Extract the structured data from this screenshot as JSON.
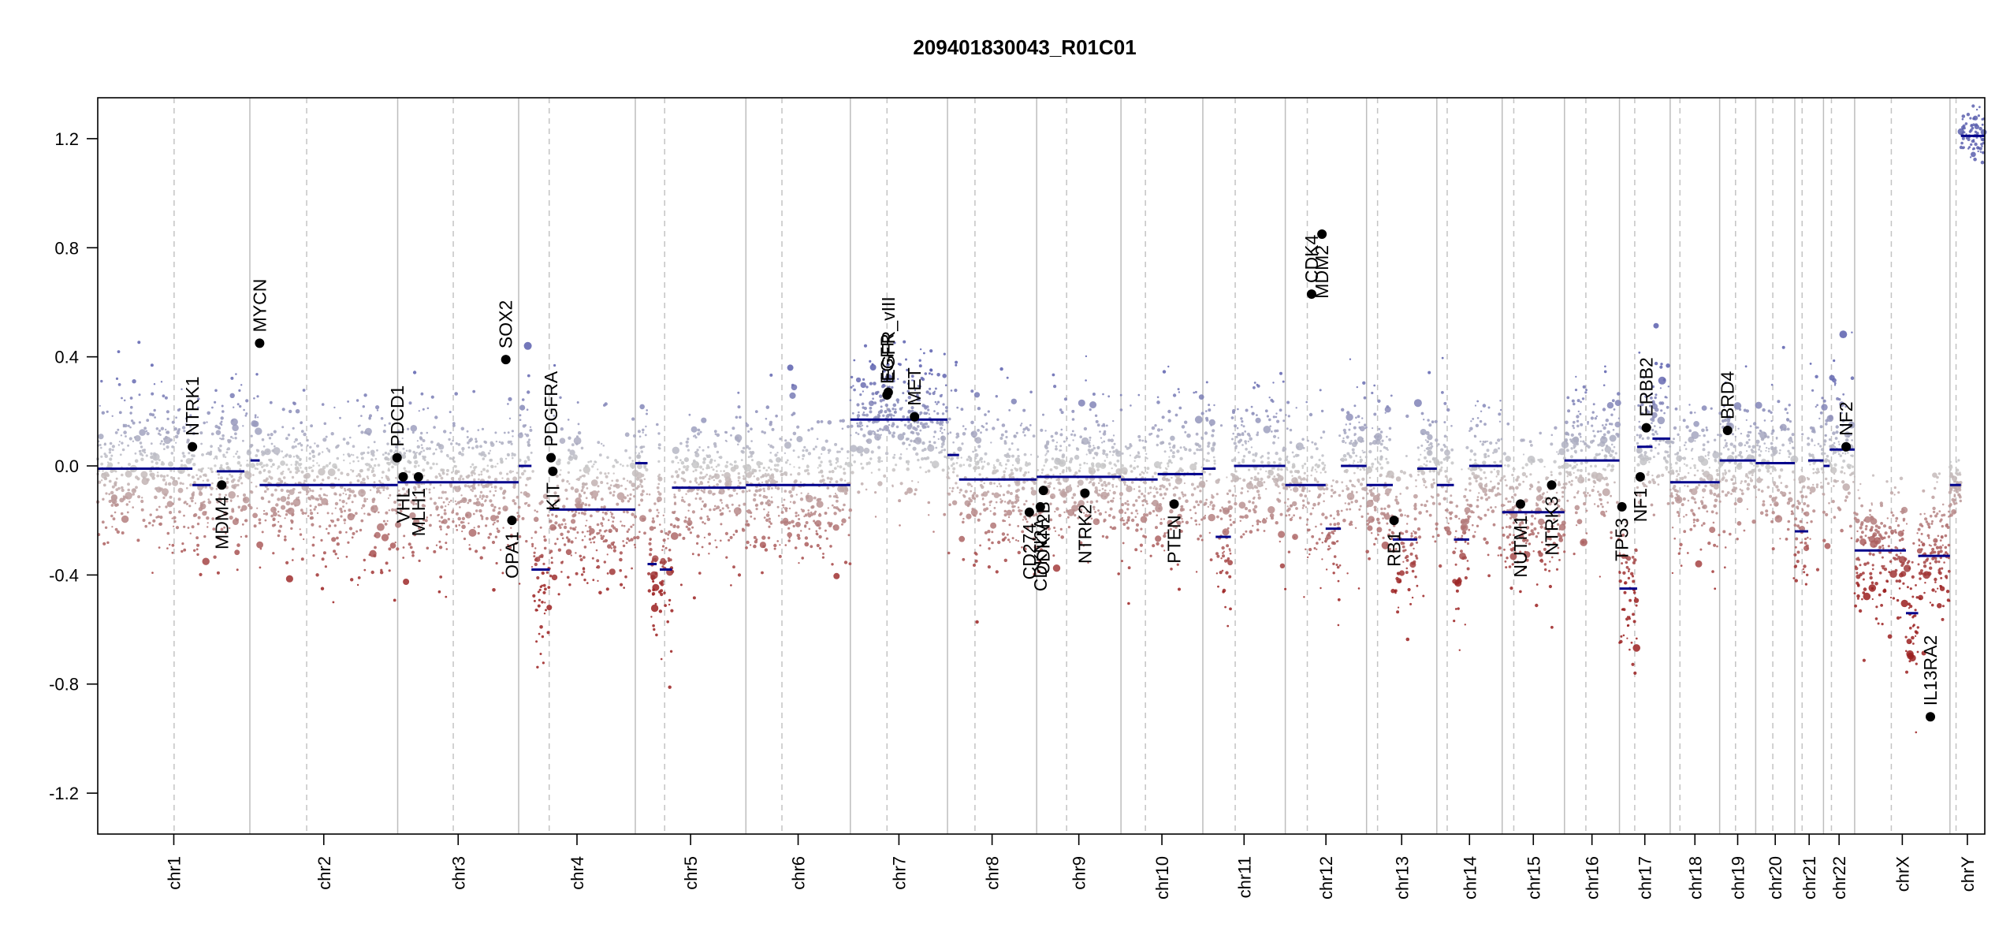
{
  "chart_data": {
    "type": "scatter",
    "title": "209401830043_R01C01",
    "xlabel": "",
    "ylabel": "",
    "ylim": [
      -1.35,
      1.35
    ],
    "yticks": [
      {
        "value": 1.2,
        "label": "1.2"
      },
      {
        "value": 0.8,
        "label": "0.8"
      },
      {
        "value": 0.4,
        "label": "0.4"
      },
      {
        "value": 0.0,
        "label": "0.0"
      },
      {
        "value": -0.4,
        "label": "-0.4"
      },
      {
        "value": -0.8,
        "label": "-0.8"
      },
      {
        "value": -1.2,
        "label": "-1.2"
      }
    ],
    "grid": "vertical lines at chromosome boundaries (solid) and centromeres (dashed)",
    "chromosomes": [
      {
        "name": "chr1",
        "label": "chr1",
        "start": 0.0,
        "end": 2.49,
        "centromere": 1.25,
        "baseline": 0.0,
        "mean": -0.01,
        "spread": 0.14
      },
      {
        "name": "chr2",
        "label": "chr2",
        "start": 2.49,
        "end": 4.91,
        "centromere": 3.42,
        "baseline": -0.02,
        "mean": -0.07,
        "spread": 0.14
      },
      {
        "name": "chr3",
        "label": "chr3",
        "start": 4.91,
        "end": 6.89,
        "centromere": 5.82,
        "baseline": 0.0,
        "mean": -0.06,
        "spread": 0.14
      },
      {
        "name": "chr4",
        "label": "chr4",
        "start": 6.89,
        "end": 8.8,
        "centromere": 7.39,
        "baseline": 0.0,
        "mean": -0.16,
        "spread": 0.15
      },
      {
        "name": "chr5",
        "label": "chr5",
        "start": 8.8,
        "end": 10.61,
        "centromere": 9.28,
        "baseline": 0.0,
        "mean": -0.08,
        "spread": 0.14
      },
      {
        "name": "chr6",
        "label": "chr6",
        "start": 10.61,
        "end": 12.32,
        "centromere": 11.2,
        "baseline": 0.0,
        "mean": -0.07,
        "spread": 0.14
      },
      {
        "name": "chr7",
        "label": "chr7",
        "start": 12.32,
        "end": 13.91,
        "centromere": 12.92,
        "baseline": 0.0,
        "mean": 0.17,
        "spread": 0.12
      },
      {
        "name": "chr8",
        "label": "chr8",
        "start": 13.91,
        "end": 15.37,
        "centromere": 14.36,
        "baseline": 0.0,
        "mean": -0.05,
        "spread": 0.14
      },
      {
        "name": "chr9",
        "label": "chr9",
        "start": 15.37,
        "end": 16.75,
        "centromere": 15.86,
        "baseline": 0.0,
        "mean": -0.04,
        "spread": 0.14
      },
      {
        "name": "chr10",
        "label": "chr10",
        "start": 16.75,
        "end": 18.09,
        "centromere": 17.15,
        "baseline": 0.0,
        "mean": -0.03,
        "spread": 0.14
      },
      {
        "name": "chr11",
        "label": "chr11",
        "start": 18.09,
        "end": 19.44,
        "centromere": 18.62,
        "baseline": 0.0,
        "mean": 0.0,
        "spread": 0.15
      },
      {
        "name": "chr12",
        "label": "chr12",
        "start": 19.44,
        "end": 20.77,
        "centromere": 19.8,
        "baseline": 0.0,
        "mean": 0.0,
        "spread": 0.15
      },
      {
        "name": "chr13",
        "label": "chr13",
        "start": 20.77,
        "end": 21.92,
        "centromere": 20.95,
        "baseline": 0.0,
        "mean": -0.07,
        "spread": 0.14
      },
      {
        "name": "chr14",
        "label": "chr14",
        "start": 21.92,
        "end": 22.99,
        "centromere": 22.09,
        "baseline": 0.0,
        "mean": -0.07,
        "spread": 0.14
      },
      {
        "name": "chr15",
        "label": "chr15",
        "start": 22.99,
        "end": 24.01,
        "centromere": 23.18,
        "baseline": 0.0,
        "mean": -0.17,
        "spread": 0.14
      },
      {
        "name": "chr16",
        "label": "chr16",
        "start": 24.01,
        "end": 24.91,
        "centromere": 24.36,
        "baseline": 0.0,
        "mean": 0.02,
        "spread": 0.15
      },
      {
        "name": "chr17",
        "label": "chr17",
        "start": 24.91,
        "end": 25.74,
        "centromere": 25.16,
        "baseline": 0.0,
        "mean": 0.07,
        "spread": 0.15
      },
      {
        "name": "chr18",
        "label": "chr18",
        "start": 25.74,
        "end": 26.55,
        "centromere": 25.9,
        "baseline": 0.0,
        "mean": -0.06,
        "spread": 0.14
      },
      {
        "name": "chr19",
        "label": "chr19",
        "start": 26.55,
        "end": 27.14,
        "centromere": 26.81,
        "baseline": 0.0,
        "mean": 0.02,
        "spread": 0.13
      },
      {
        "name": "chr20",
        "label": "chr20",
        "start": 27.14,
        "end": 27.78,
        "centromere": 27.42,
        "baseline": 0.0,
        "mean": 0.01,
        "spread": 0.13
      },
      {
        "name": "chr21",
        "label": "chr21",
        "start": 27.78,
        "end": 28.25,
        "centromere": 27.9,
        "baseline": 0.0,
        "mean": -0.03,
        "spread": 0.14
      },
      {
        "name": "chr22",
        "label": "chr22",
        "start": 28.25,
        "end": 28.76,
        "centromere": 28.38,
        "baseline": 0.0,
        "mean": 0.06,
        "spread": 0.14
      },
      {
        "name": "chrX",
        "label": "chrX",
        "start": 28.76,
        "end": 30.32,
        "centromere": 29.36,
        "baseline": 0.0,
        "mean": -0.32,
        "spread": 0.14
      },
      {
        "name": "chrY",
        "label": "chrY",
        "start": 30.32,
        "end": 30.89,
        "centromere": 30.42,
        "baseline": 0.0,
        "mean": 1.21,
        "spread": 0.05
      }
    ],
    "xlim": [
      0.0,
      30.89
    ],
    "segments": [
      {
        "x0": 0.0,
        "x1": 1.55,
        "y": -0.01
      },
      {
        "x0": 1.55,
        "x1": 1.85,
        "y": -0.07
      },
      {
        "x0": 1.95,
        "x1": 2.4,
        "y": -0.02
      },
      {
        "x0": 2.5,
        "x1": 2.65,
        "y": 0.02
      },
      {
        "x0": 2.65,
        "x1": 4.91,
        "y": -0.07
      },
      {
        "x0": 4.91,
        "x1": 6.89,
        "y": -0.06
      },
      {
        "x0": 6.89,
        "x1": 7.1,
        "y": 0.0
      },
      {
        "x0": 7.1,
        "x1": 7.4,
        "y": -0.38
      },
      {
        "x0": 7.4,
        "x1": 8.8,
        "y": -0.16
      },
      {
        "x0": 8.8,
        "x1": 9.0,
        "y": 0.01
      },
      {
        "x0": 9.0,
        "x1": 9.15,
        "y": -0.36
      },
      {
        "x0": 9.2,
        "x1": 9.4,
        "y": -0.38
      },
      {
        "x0": 9.4,
        "x1": 10.61,
        "y": -0.08
      },
      {
        "x0": 10.61,
        "x1": 12.32,
        "y": -0.07
      },
      {
        "x0": 12.32,
        "x1": 13.91,
        "y": 0.17
      },
      {
        "x0": 13.91,
        "x1": 14.1,
        "y": 0.04
      },
      {
        "x0": 14.1,
        "x1": 15.37,
        "y": -0.05
      },
      {
        "x0": 15.37,
        "x1": 16.75,
        "y": -0.04
      },
      {
        "x0": 16.75,
        "x1": 17.35,
        "y": -0.05
      },
      {
        "x0": 17.35,
        "x1": 18.09,
        "y": -0.03
      },
      {
        "x0": 18.09,
        "x1": 18.3,
        "y": -0.01
      },
      {
        "x0": 18.3,
        "x1": 18.55,
        "y": -0.26
      },
      {
        "x0": 18.6,
        "x1": 19.44,
        "y": 0.0
      },
      {
        "x0": 19.44,
        "x1": 20.1,
        "y": -0.07
      },
      {
        "x0": 20.1,
        "x1": 20.35,
        "y": -0.23
      },
      {
        "x0": 20.35,
        "x1": 20.77,
        "y": 0.0
      },
      {
        "x0": 20.77,
        "x1": 21.2,
        "y": -0.07
      },
      {
        "x0": 21.2,
        "x1": 21.6,
        "y": -0.27
      },
      {
        "x0": 21.6,
        "x1": 21.92,
        "y": -0.01
      },
      {
        "x0": 21.92,
        "x1": 22.2,
        "y": -0.07
      },
      {
        "x0": 22.2,
        "x1": 22.45,
        "y": -0.27
      },
      {
        "x0": 22.45,
        "x1": 22.99,
        "y": 0.0
      },
      {
        "x0": 22.99,
        "x1": 24.01,
        "y": -0.17
      },
      {
        "x0": 24.01,
        "x1": 24.91,
        "y": 0.02
      },
      {
        "x0": 24.91,
        "x1": 25.2,
        "y": -0.45
      },
      {
        "x0": 25.2,
        "x1": 25.45,
        "y": 0.07
      },
      {
        "x0": 25.45,
        "x1": 25.74,
        "y": 0.1
      },
      {
        "x0": 25.74,
        "x1": 26.55,
        "y": -0.06
      },
      {
        "x0": 26.55,
        "x1": 27.14,
        "y": 0.02
      },
      {
        "x0": 27.14,
        "x1": 27.78,
        "y": 0.01
      },
      {
        "x0": 27.78,
        "x1": 28.0,
        "y": -0.24
      },
      {
        "x0": 28.0,
        "x1": 28.25,
        "y": 0.02
      },
      {
        "x0": 28.25,
        "x1": 28.35,
        "y": 0.0
      },
      {
        "x0": 28.35,
        "x1": 28.76,
        "y": 0.06
      },
      {
        "x0": 28.76,
        "x1": 29.6,
        "y": -0.31
      },
      {
        "x0": 29.6,
        "x1": 29.8,
        "y": -0.54
      },
      {
        "x0": 29.8,
        "x1": 30.32,
        "y": -0.33
      },
      {
        "x0": 30.32,
        "x1": 30.5,
        "y": -0.07
      },
      {
        "x0": 30.5,
        "x1": 30.89,
        "y": 1.21
      }
    ],
    "genes": [
      {
        "label": "NTRK1",
        "x": 1.55,
        "y": 0.07,
        "side": "above"
      },
      {
        "label": "MDM4",
        "x": 2.03,
        "y": -0.07,
        "side": "below"
      },
      {
        "label": "MYCN",
        "x": 2.65,
        "y": 0.45,
        "side": "above"
      },
      {
        "label": "PDCD1",
        "x": 4.9,
        "y": 0.03,
        "side": "above"
      },
      {
        "label": "VHL",
        "x": 5.0,
        "y": -0.04,
        "side": "below"
      },
      {
        "label": "MLH1",
        "x": 5.25,
        "y": -0.04,
        "side": "below"
      },
      {
        "label": "SOX2",
        "x": 6.68,
        "y": 0.39,
        "side": "above"
      },
      {
        "label": "OPA1",
        "x": 6.78,
        "y": -0.2,
        "side": "below"
      },
      {
        "label": "KIT",
        "x": 7.45,
        "y": -0.02,
        "side": "below"
      },
      {
        "label": "PDGFRA",
        "x": 7.42,
        "y": 0.03,
        "side": "above"
      },
      {
        "label": "EGFR",
        "x": 12.92,
        "y": 0.26,
        "side": "above"
      },
      {
        "label": "EGFR_vIII",
        "x": 12.94,
        "y": 0.27,
        "side": "above"
      },
      {
        "label": "MET",
        "x": 13.37,
        "y": 0.18,
        "side": "above"
      },
      {
        "label": "CD274",
        "x": 15.25,
        "y": -0.17,
        "side": "below"
      },
      {
        "label": "CDKN2A",
        "x": 15.43,
        "y": -0.15,
        "side": "below"
      },
      {
        "label": "CDKN2B",
        "x": 15.48,
        "y": -0.09,
        "side": "below"
      },
      {
        "label": "NTRK2",
        "x": 16.16,
        "y": -0.1,
        "side": "below"
      },
      {
        "label": "PTEN",
        "x": 17.62,
        "y": -0.14,
        "side": "below"
      },
      {
        "label": "CDK4",
        "x": 19.87,
        "y": 0.63,
        "side": "above"
      },
      {
        "label": "MDM2",
        "x": 20.04,
        "y": 0.85,
        "side": "below"
      },
      {
        "label": "RB1",
        "x": 21.22,
        "y": -0.2,
        "side": "below"
      },
      {
        "label": "NUTM1",
        "x": 23.29,
        "y": -0.14,
        "side": "below"
      },
      {
        "label": "NTRK3",
        "x": 23.8,
        "y": -0.07,
        "side": "below"
      },
      {
        "label": "TP53",
        "x": 24.95,
        "y": -0.15,
        "side": "below"
      },
      {
        "label": "NF1",
        "x": 25.25,
        "y": -0.04,
        "side": "below"
      },
      {
        "label": "ERBB2",
        "x": 25.35,
        "y": 0.14,
        "side": "above"
      },
      {
        "label": "BRD4",
        "x": 26.68,
        "y": 0.13,
        "side": "above"
      },
      {
        "label": "NF2",
        "x": 28.62,
        "y": 0.07,
        "side": "above"
      },
      {
        "label": "IL13RA2",
        "x": 30.0,
        "y": -0.92,
        "side": "above"
      }
    ],
    "colors": {
      "gain": "#5b5fae",
      "neutral": "#c8c8c8",
      "loss": "#9b2020",
      "segment": "#00008b",
      "gene_point": "#000000",
      "chrom_boundary": "#bdbdbd",
      "centromere": "#c4c4c4"
    }
  }
}
